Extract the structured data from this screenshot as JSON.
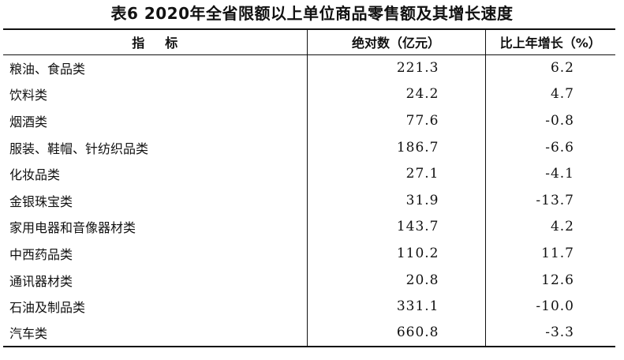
{
  "title": "表6 2020年全省限额以上单位商品零售额及其增长速度",
  "headers": {
    "indicator": "指标",
    "absolute": "绝对数（亿元）",
    "growth": "比上年增长（%）"
  },
  "rows": [
    {
      "name": "粮油、食品类",
      "value": "221.3",
      "growth": "6.2"
    },
    {
      "name": "饮料类",
      "value": "24.2",
      "growth": "4.7"
    },
    {
      "name": "烟酒类",
      "value": "77.6",
      "growth": "-0.8"
    },
    {
      "name": "服装、鞋帽、针纺织品类",
      "value": "186.7",
      "growth": "-6.6"
    },
    {
      "name": "化妆品类",
      "value": "27.1",
      "growth": "-4.1"
    },
    {
      "name": "金银珠宝类",
      "value": "31.9",
      "growth": "-13.7"
    },
    {
      "name": "家用电器和音像器材类",
      "value": "143.7",
      "growth": "4.2"
    },
    {
      "name": "中西药品类",
      "value": "110.2",
      "growth": "11.7"
    },
    {
      "name": "通讯器材类",
      "value": "20.8",
      "growth": "12.6"
    },
    {
      "name": "石油及制品类",
      "value": "331.1",
      "growth": "-10.0"
    },
    {
      "name": "汽车类",
      "value": "660.8",
      "growth": "-3.3"
    }
  ]
}
